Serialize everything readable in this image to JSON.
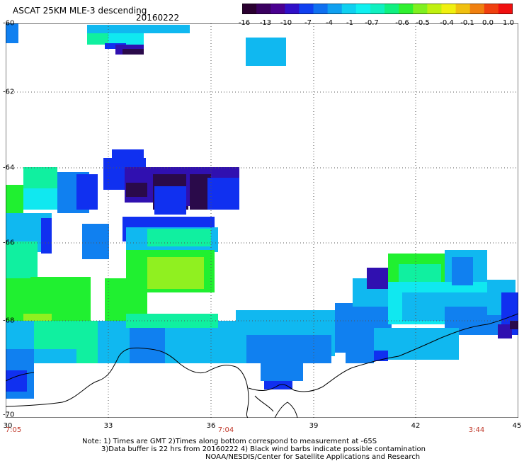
{
  "header": {
    "title": "ASCAT 25KM MLE-3 descending",
    "date": "20160222"
  },
  "colorbar": {
    "labels": [
      "-16",
      "-13",
      "-10",
      "-7",
      "-4",
      "-1",
      "-0.7",
      "-0.6",
      "-0.5",
      "-0.4",
      "-0.1",
      "0.0",
      "1.0"
    ],
    "colors": [
      "#2a0030",
      "#4a0080",
      "#2010c8",
      "#1050f0",
      "#10a0f0",
      "#10f0f0",
      "#10f0a0",
      "#20f020",
      "#a0f010",
      "#f0f010",
      "#f0a010",
      "#f05010",
      "#f01010"
    ]
  },
  "axes": {
    "y_labels": [
      "-60",
      "-62",
      "-64",
      "-66",
      "-68",
      "-70"
    ],
    "x_labels": [
      "30",
      "33",
      "36",
      "39",
      "42",
      "45"
    ],
    "time_labels": [
      "7:05",
      "7:04",
      "3:44"
    ]
  },
  "footer": {
    "line1": "Note: 1) Times are GMT 2)Times along bottom correspond to measurement at -65S",
    "line2": "3)Data buffer is 22 hrs from 20160222 4) Black wind barbs indicate possible contamination",
    "line3": "NOAA/NESDIS/Center for Satellite Applications and Research"
  },
  "colors": {
    "dark_purple": "#2a0a4a",
    "indigo": "#3010b0",
    "blue": "#1030f0",
    "mid_blue": "#1080f0",
    "light_blue": "#10b8f0",
    "cyan": "#10e8f0",
    "aqua_green": "#10f0a0",
    "green": "#20f030",
    "yellow_green": "#90f020"
  }
}
